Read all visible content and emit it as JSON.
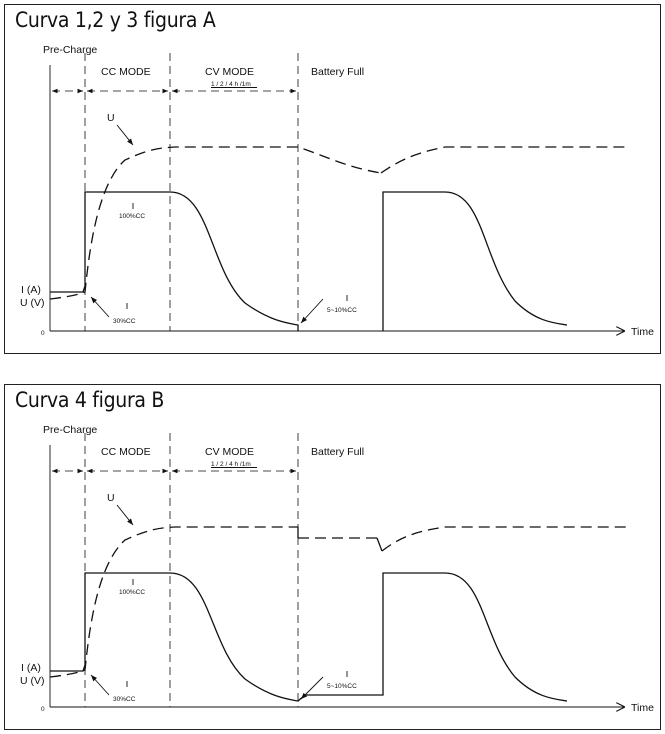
{
  "panels": [
    {
      "title": "Curva 1,2 y 3 figura A",
      "labels": {
        "pre_charge": "Pre-Charge",
        "cc_mode": "CC MODE",
        "cv_mode": "CV MODE",
        "cv_time": "1 / 2 / 4 h /1m",
        "battery_full": "Battery Full",
        "u_curve": "U",
        "i_axis": "I (A)",
        "u_axis": "U (V)",
        "zero": "0",
        "time": "Time",
        "cc_100": "100%CC",
        "cc_30": "30%CC",
        "cc_5_10": "5~10%CC"
      }
    },
    {
      "title": "Curva 4 figura B",
      "labels": {
        "pre_charge": "Pre-Charge",
        "cc_mode": "CC MODE",
        "cv_mode": "CV MODE",
        "cv_time": "1 / 2 / 4 h /1m",
        "battery_full": "Battery Full",
        "u_curve": "U",
        "i_axis": "I (A)",
        "u_axis": "U (V)",
        "zero": "0",
        "time": "Time",
        "cc_100": "100%CC",
        "cc_30": "30%CC",
        "cc_5_10": "5~10%CC"
      }
    }
  ]
}
